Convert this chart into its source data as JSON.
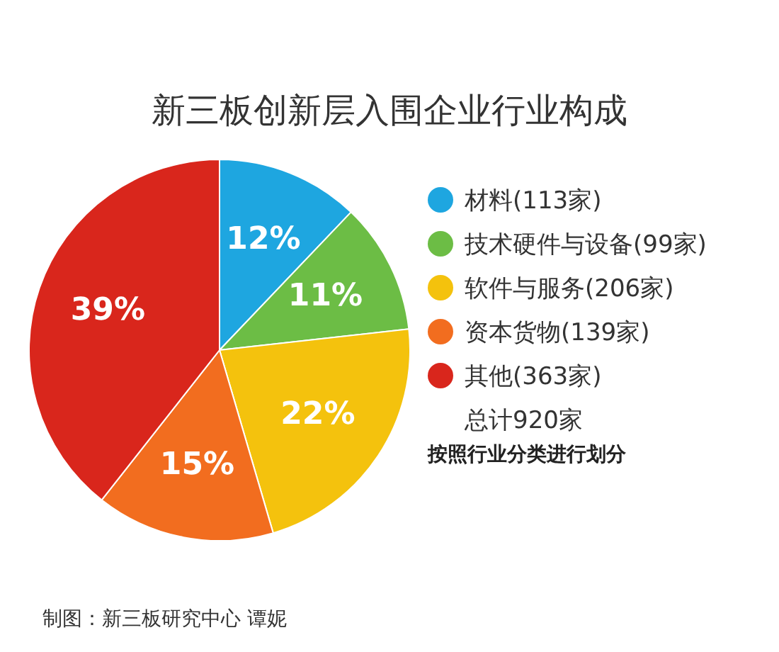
{
  "chart_data": {
    "type": "pie",
    "title": "新三板创新层入围企业行业构成",
    "categories": [
      "材料(113家)",
      "技术硬件与设备(99家)",
      "软件与服务(206家)",
      "资本货物(139家)",
      "其他(363家)"
    ],
    "values": [
      12,
      11,
      22,
      15,
      39
    ],
    "value_labels": [
      "12%",
      "11%",
      "22%",
      "15%",
      "39%"
    ],
    "colors": [
      "#1ea6e0",
      "#6cbd45",
      "#f4c20d",
      "#f26d1f",
      "#d9261c"
    ],
    "legend": "right",
    "annotations": [
      "总计920家",
      "按照行业分类进行划分",
      "制图：新三板研究中心 谭妮"
    ]
  }
}
